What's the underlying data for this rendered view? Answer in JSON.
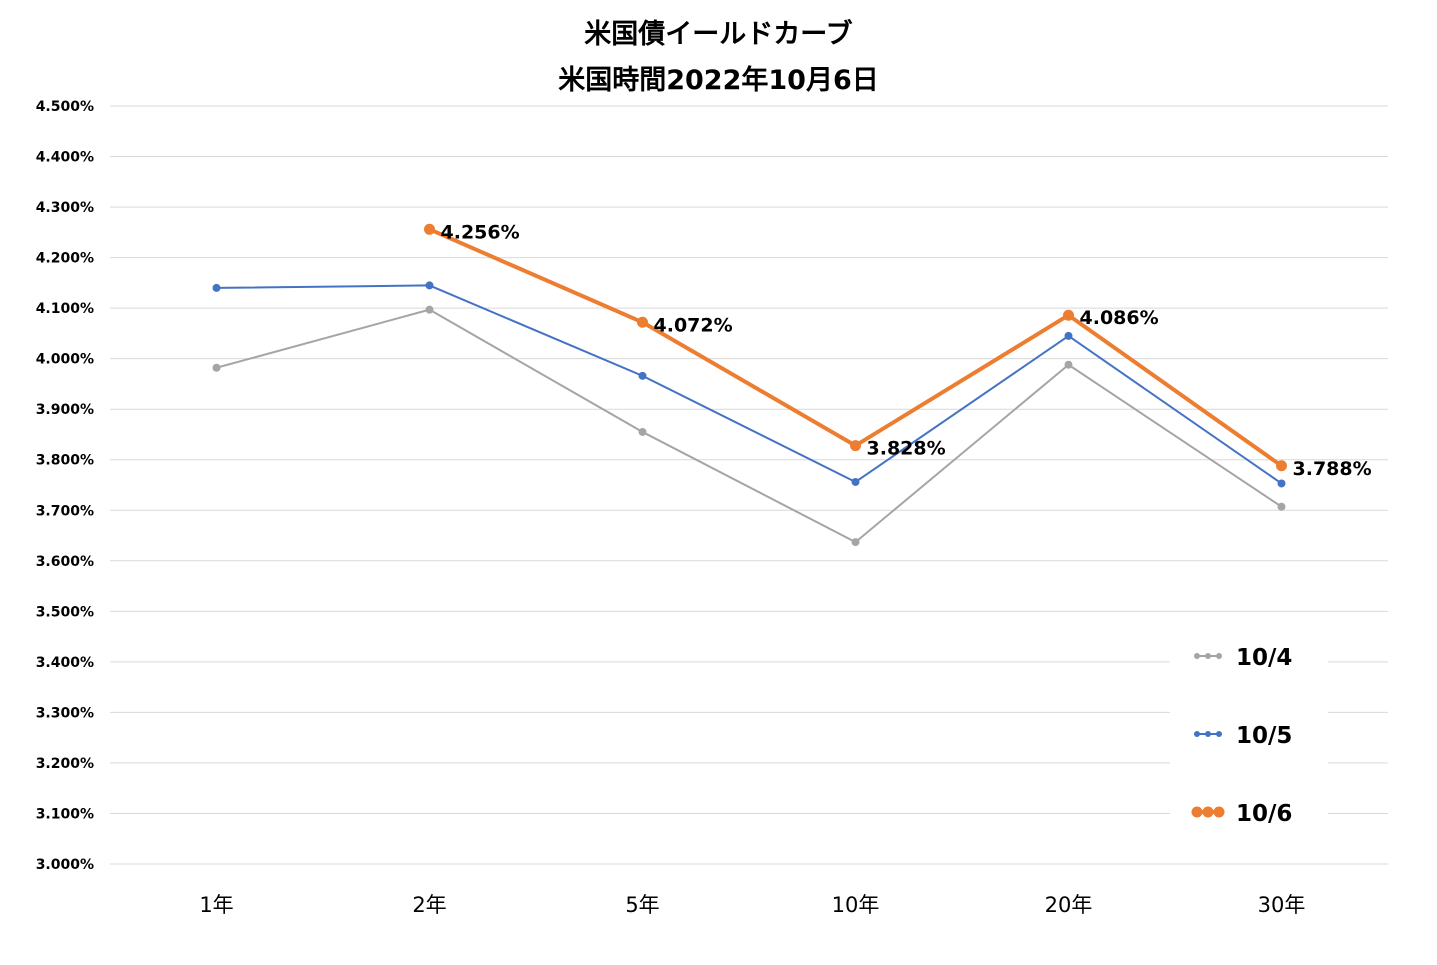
{
  "chart_data": {
    "type": "line",
    "title": "米国債イールドカーブ",
    "subtitle": "米国時間2022年10月6日",
    "categories": [
      "1年",
      "2年",
      "5年",
      "10年",
      "20年",
      "30年"
    ],
    "ylim": [
      3.0,
      4.5
    ],
    "yticks": [
      {
        "value": 4.5,
        "label": "4.500%"
      },
      {
        "value": 4.4,
        "label": "4.400%"
      },
      {
        "value": 4.3,
        "label": "4.300%"
      },
      {
        "value": 4.2,
        "label": "4.200%"
      },
      {
        "value": 4.1,
        "label": "4.100%"
      },
      {
        "value": 4.0,
        "label": "4.000%"
      },
      {
        "value": 3.9,
        "label": "3.900%"
      },
      {
        "value": 3.8,
        "label": "3.800%"
      },
      {
        "value": 3.7,
        "label": "3.700%"
      },
      {
        "value": 3.6,
        "label": "3.600%"
      },
      {
        "value": 3.5,
        "label": "3.500%"
      },
      {
        "value": 3.4,
        "label": "3.400%"
      },
      {
        "value": 3.3,
        "label": "3.300%"
      },
      {
        "value": 3.2,
        "label": "3.200%"
      },
      {
        "value": 3.1,
        "label": "3.100%"
      },
      {
        "value": 3.0,
        "label": "3.000%"
      }
    ],
    "grid": true,
    "legend_position": "bottom-right",
    "series": [
      {
        "name": "10/4",
        "color": "#a5a5a5",
        "values": [
          3.982,
          4.097,
          3.855,
          3.637,
          3.988,
          3.707
        ],
        "labels": []
      },
      {
        "name": "10/5",
        "color": "#4472c4",
        "values": [
          4.14,
          4.145,
          3.966,
          3.756,
          4.045,
          3.753
        ],
        "labels": []
      },
      {
        "name": "10/6",
        "color": "#ed7d31",
        "values": [
          null,
          4.256,
          4.072,
          3.828,
          4.086,
          3.788
        ],
        "labels": [
          "",
          "4.256%",
          "4.072%",
          "3.828%",
          "4.086%",
          "3.788%"
        ]
      }
    ]
  }
}
